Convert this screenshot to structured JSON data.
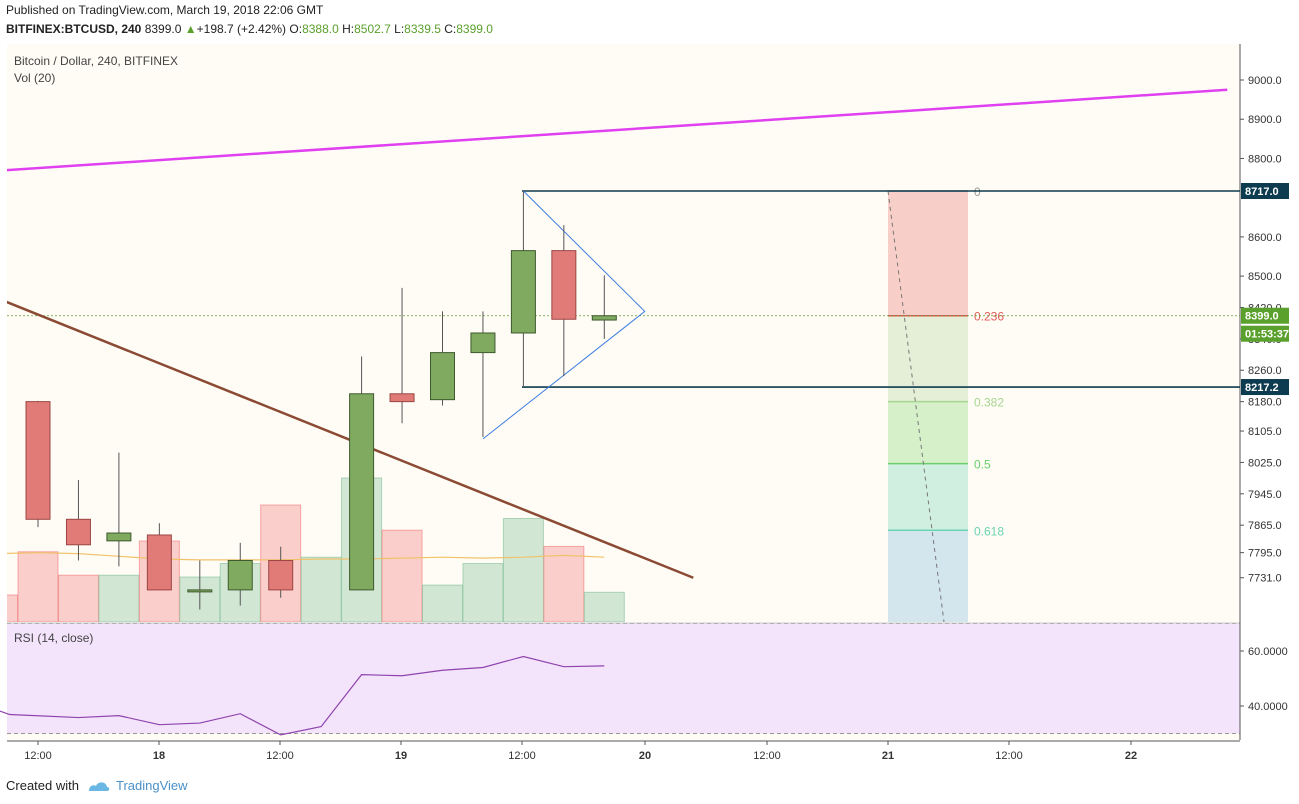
{
  "header": {
    "published": "Published on TradingView.com, March 19, 2018 22:06 GMT",
    "symbol": "BITFINEX:BTCUSD, 240",
    "last": "8399.0",
    "change": "+198.7 (+2.42%)",
    "o_label": "O:",
    "o_value": "8388.0",
    "h_label": "H:",
    "h_value": "8502.7",
    "l_label": "L:",
    "l_value": "8339.5",
    "c_label": "C:",
    "c_value": "8399.0"
  },
  "footer": {
    "created_with": "Created with",
    "brand": "TradingView",
    "logo_icon": "tradingview-logo-icon"
  },
  "chart_data": {
    "type": "candlestick",
    "title": "Bitcoin / Dollar, 240, BITFINEX",
    "volume_label": "Vol (20)",
    "rsi_label": "RSI (14, close)",
    "price_ticks": [
      "9000.0",
      "8900.0",
      "8800.0",
      "8600.0",
      "8500.0",
      "8420.0",
      "8340.0",
      "8260.0",
      "8180.0",
      "8105.0",
      "8025.0",
      "7945.0",
      "7865.0",
      "7795.0",
      "7731.0"
    ],
    "rsi_ticks": [
      "60.0000",
      "40.0000"
    ],
    "x_ticks": [
      "12:00",
      "18",
      "12:00",
      "19",
      "12:00",
      "20",
      "12:00",
      "21",
      "12:00",
      "22"
    ],
    "price_labels": {
      "high_line": "8717.0",
      "current": "8399.0",
      "countdown": "01:53:37",
      "low_line": "8217.2"
    },
    "fib_levels": [
      {
        "label": "0",
        "price": 8717
      },
      {
        "label": "0.236",
        "price": 8399
      },
      {
        "label": "0.382",
        "price": 8180
      },
      {
        "label": "0.5",
        "price": 8022
      },
      {
        "label": "0.618",
        "price": 7852
      }
    ],
    "candles": [
      {
        "i": 0,
        "o": 8180,
        "h": 8182,
        "l": 7860,
        "c": 7880
      },
      {
        "i": 1,
        "o": 7880,
        "h": 7980,
        "l": 7775,
        "c": 7815
      },
      {
        "i": 2,
        "o": 7825,
        "h": 8050,
        "l": 7760,
        "c": 7845
      },
      {
        "i": 3,
        "o": 7840,
        "h": 7870,
        "l": 7700,
        "c": 7700
      },
      {
        "i": 4,
        "o": 7700,
        "h": 7775,
        "l": 7650,
        "c": 7700
      },
      {
        "i": 5,
        "o": 7700,
        "h": 7820,
        "l": 7660,
        "c": 7775
      },
      {
        "i": 6,
        "o": 7775,
        "h": 7810,
        "l": 7680,
        "c": 7700
      },
      {
        "i": 8,
        "o": 7700,
        "h": 8295,
        "l": 7700,
        "c": 8200
      },
      {
        "i": 9,
        "o": 8200,
        "h": 8470,
        "l": 8125,
        "c": 8180
      },
      {
        "i": 10,
        "o": 8185,
        "h": 8410,
        "l": 8170,
        "c": 8305
      },
      {
        "i": 11,
        "o": 8305,
        "h": 8410,
        "l": 8090,
        "c": 8355
      },
      {
        "i": 12,
        "o": 8355,
        "h": 8717,
        "l": 8217,
        "c": 8565
      },
      {
        "i": 13,
        "o": 8565,
        "h": 8630,
        "l": 8245,
        "c": 8390
      },
      {
        "i": 14,
        "o": 8388,
        "h": 8502,
        "l": 8340,
        "c": 8399
      }
    ],
    "volume": [
      {
        "i": -1,
        "v": 0.3,
        "up": false
      },
      {
        "i": 0,
        "v": 0.78,
        "up": false
      },
      {
        "i": 1,
        "v": 0.52,
        "up": false
      },
      {
        "i": 2,
        "v": 0.52,
        "up": true
      },
      {
        "i": 3,
        "v": 0.9,
        "up": false
      },
      {
        "i": 4,
        "v": 0.5,
        "up": true
      },
      {
        "i": 5,
        "v": 0.65,
        "up": true
      },
      {
        "i": 6,
        "v": 1.3,
        "up": false
      },
      {
        "i": 7,
        "v": 0.72,
        "up": true
      },
      {
        "i": 8,
        "v": 1.6,
        "up": true
      },
      {
        "i": 9,
        "v": 1.02,
        "up": false
      },
      {
        "i": 10,
        "v": 0.41,
        "up": true
      },
      {
        "i": 11,
        "v": 0.65,
        "up": true
      },
      {
        "i": 12,
        "v": 1.15,
        "up": true
      },
      {
        "i": 13,
        "v": 0.84,
        "up": false
      },
      {
        "i": 14,
        "v": 0.33,
        "up": true
      }
    ],
    "volume_ma": [
      0.76,
      0.77,
      0.76,
      0.73,
      0.7,
      0.69,
      0.69,
      0.69,
      0.7,
      0.7,
      0.71,
      0.72,
      0.71,
      0.72,
      0.74,
      0.72
    ],
    "rsi": [
      {
        "i": -1.3,
        "v": 40.0
      },
      {
        "i": -0.7,
        "v": 36.9
      },
      {
        "i": 1,
        "v": 35.8
      },
      {
        "i": 2,
        "v": 36.5
      },
      {
        "i": 3,
        "v": 33.2
      },
      {
        "i": 4,
        "v": 33.8
      },
      {
        "i": 5,
        "v": 37.2
      },
      {
        "i": 6,
        "v": 29.5
      },
      {
        "i": 7,
        "v": 32.5
      },
      {
        "i": 8,
        "v": 51.4
      },
      {
        "i": 9,
        "v": 51.0
      },
      {
        "i": 10,
        "v": 53.0
      },
      {
        "i": 11,
        "v": 54.0
      },
      {
        "i": 12,
        "v": 58.0
      },
      {
        "i": 13,
        "v": 54.3
      },
      {
        "i": 14,
        "v": 54.6
      }
    ],
    "trendlines": [
      {
        "name": "magenta-resistance",
        "color": "#e040f0",
        "p1": {
          "i": -0.8,
          "price": 8770
        },
        "p2": {
          "i": 29.4,
          "price": 8975
        }
      },
      {
        "name": "brown-resistance",
        "color": "#8b4a33",
        "p1": {
          "i": -0.8,
          "price": 8435
        },
        "p2": {
          "i": 16.2,
          "price": 7731
        }
      }
    ],
    "triangle": {
      "apex_i": 15.0,
      "apex_price": 8410,
      "top": {
        "i": 12,
        "price": 8717
      },
      "bottom": {
        "i": 11.0,
        "price": 8085
      }
    },
    "colors": {
      "up": "#7faa5f",
      "down": "#e07b78",
      "up_border": "#3e5a2e",
      "down_border": "#9c4643",
      "bg": "#fffcf6",
      "rsi_bg": "#f3e3fb",
      "rsi_line": "#8e44ad",
      "price_box": "#0d3b4f",
      "current_box": "#5aa02c"
    }
  }
}
